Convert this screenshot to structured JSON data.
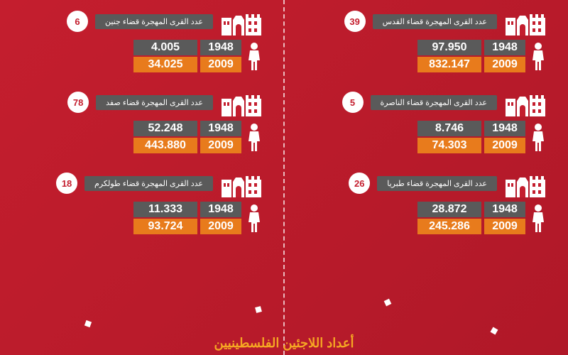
{
  "left_column": [
    {
      "count": "6",
      "label": "عدد القرى المهجرة قضاء جنين",
      "year1": "1948",
      "value1": "4.005",
      "year2": "2009",
      "value2": "34.025"
    },
    {
      "count": "78",
      "label": "عدد القرى المهجرة قضاء صفد",
      "year1": "1948",
      "value1": "52.248",
      "year2": "2009",
      "value2": "443.880"
    },
    {
      "count": "18",
      "label": "عدد القرى المهجرة قضاء طولكرم",
      "year1": "1948",
      "value1": "11.333",
      "year2": "2009",
      "value2": "93.724"
    }
  ],
  "right_column": [
    {
      "count": "39",
      "label": "عدد القرى المهجرة قضاء القدس",
      "year1": "1948",
      "value1": "97.950",
      "year2": "2009",
      "value2": "832.147"
    },
    {
      "count": "5",
      "label": "عدد القرى المهجرة قضاء الناصرة",
      "year1": "1948",
      "value1": "8.746",
      "year2": "2009",
      "value2": "74.303"
    },
    {
      "count": "26",
      "label": "عدد القرى المهجرة قضاء طبريا",
      "year1": "1948",
      "value1": "28.872",
      "year2": "2009",
      "value2": "245.286"
    }
  ],
  "footer": "أعداد اللاجئين الفلسطينيين",
  "colors": {
    "bg_start": "#c41e2e",
    "bg_end": "#b01828",
    "gray": "#5a5a5a",
    "orange": "#e87b1c",
    "white": "#ffffff",
    "footer_color": "#f5a623"
  }
}
